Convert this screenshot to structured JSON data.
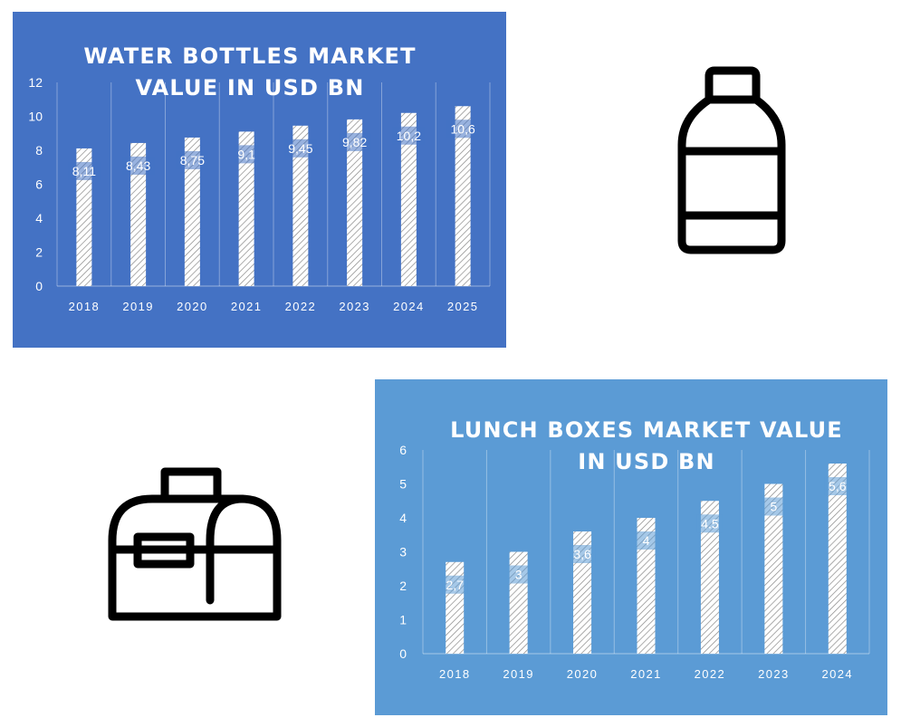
{
  "colors": {
    "water_background": "#4472C4",
    "lunch_background": "#5B9BD5",
    "bar_fill": "#ffffff",
    "icon_stroke": "#000000"
  },
  "icons": {
    "water_bottle": "water-bottle-icon",
    "lunch_box": "lunch-box-icon"
  },
  "chart_data": [
    {
      "id": "water",
      "type": "bar",
      "title_lines": [
        "WATER BOTTLES MARKET",
        "VALUE IN USD BN"
      ],
      "categories": [
        "2018",
        "2019",
        "2020",
        "2021",
        "2022",
        "2023",
        "2024",
        "2025"
      ],
      "values": [
        8.11,
        8.43,
        8.75,
        9.1,
        9.45,
        9.82,
        10.2,
        10.6
      ],
      "data_labels": [
        "8,11",
        "8,43",
        "8,75",
        "9,1",
        "9,45",
        "9,82",
        "10,2",
        "10,6"
      ],
      "ylim": [
        0,
        12
      ],
      "yticks": [
        0,
        2,
        4,
        6,
        8,
        10,
        12
      ],
      "ytick_labels": [
        "0",
        "2",
        "4",
        "6",
        "8",
        "10",
        "12"
      ],
      "xlabel": "",
      "ylabel": "",
      "grid": true,
      "bar_style": "hatched"
    },
    {
      "id": "lunch",
      "type": "bar",
      "title_lines": [
        "LUNCH BOXES MARKET VALUE",
        "IN USD BN"
      ],
      "categories": [
        "2018",
        "2019",
        "2020",
        "2021",
        "2022",
        "2023",
        "2024"
      ],
      "values": [
        2.7,
        3,
        3.6,
        4,
        4.5,
        5,
        5.6
      ],
      "data_labels": [
        "2,7",
        "3",
        "3,6",
        "4",
        "4.5",
        "5",
        "5,6"
      ],
      "ylim": [
        0,
        6
      ],
      "yticks": [
        0,
        1,
        2,
        3,
        4,
        5,
        6
      ],
      "ytick_labels": [
        "0",
        "1",
        "2",
        "3",
        "4",
        "5",
        "6"
      ],
      "xlabel": "",
      "ylabel": "",
      "grid": true,
      "bar_style": "hatched"
    }
  ]
}
